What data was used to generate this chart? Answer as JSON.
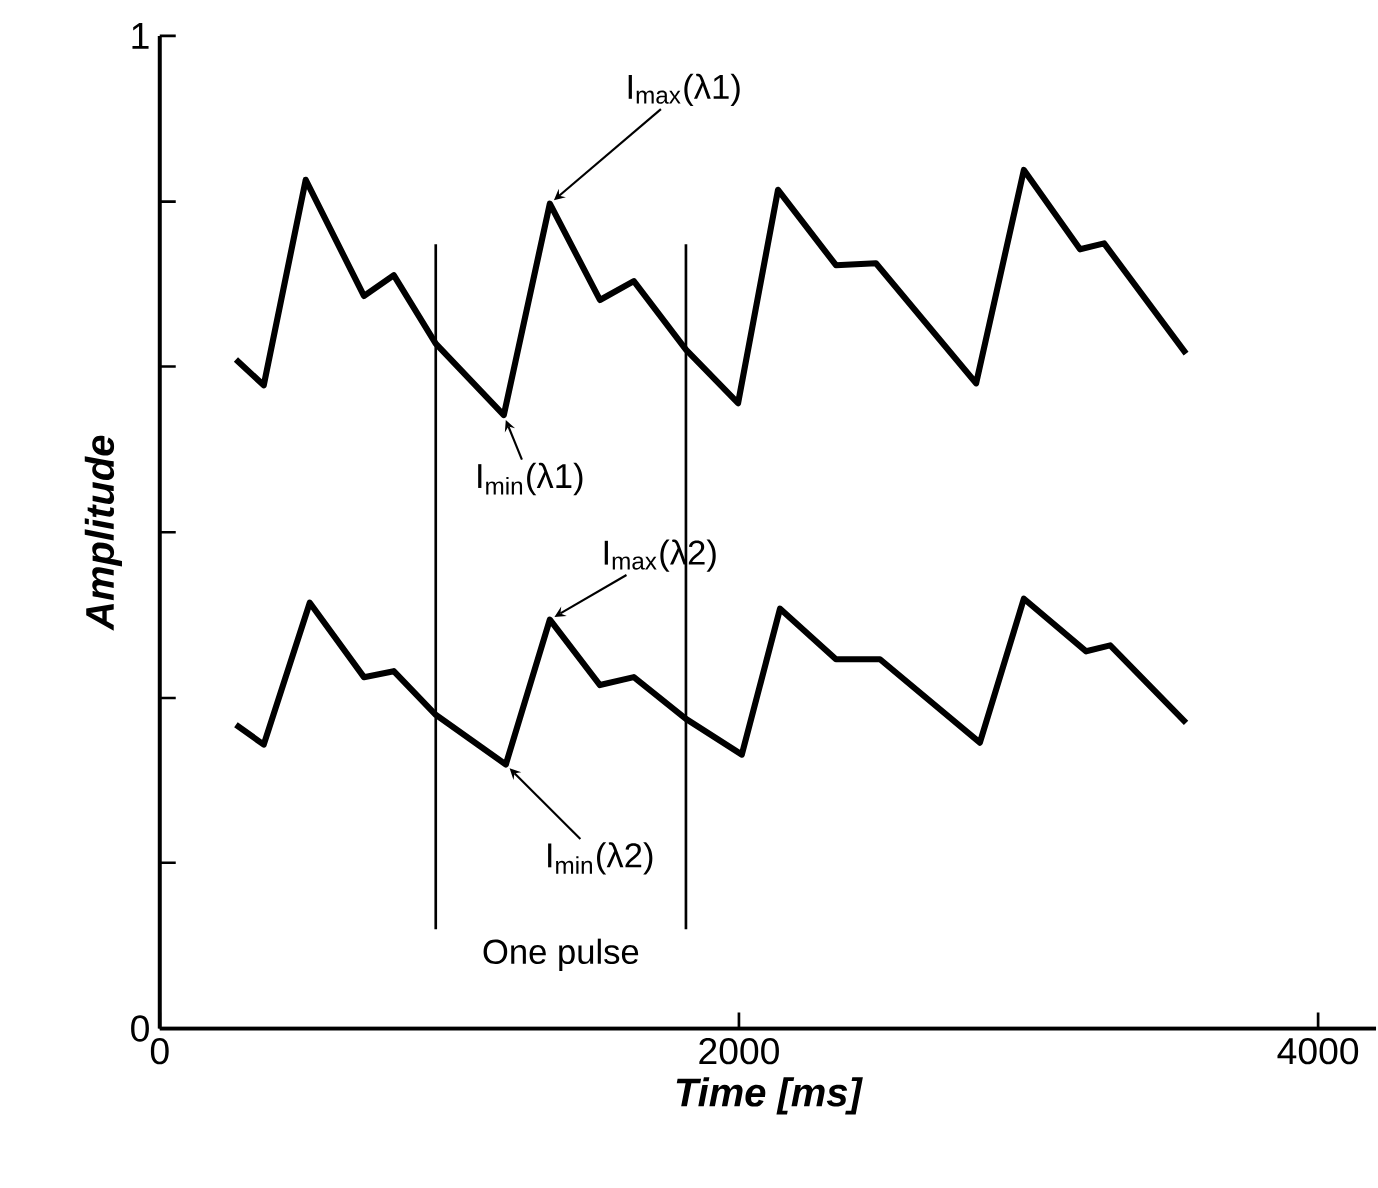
{
  "chart_data": {
    "type": "line",
    "xlabel": "Time [ms]",
    "ylabel": "Amplitude",
    "xlim": [
      0,
      4200
    ],
    "ylim": [
      0,
      1
    ],
    "xticks": [
      0,
      2000,
      4000
    ],
    "yticks": [
      0,
      {
        "value": 0.167,
        "label": null
      },
      {
        "value": 0.333,
        "label": null
      },
      {
        "value": 0.5,
        "label": null
      },
      {
        "value": 0.667,
        "label": null
      },
      {
        "value": 0.833,
        "label": null
      },
      1
    ],
    "series": [
      {
        "color": "#000000",
        "x": [
          263,
          359,
          504,
          705,
          808,
          953,
          1188,
          1347,
          1520,
          1637,
          1817,
          1997,
          2135,
          2335,
          2473,
          2819,
          2984,
          3178,
          3261,
          3544
        ],
        "values": [
          0.674,
          0.648,
          0.855,
          0.738,
          0.759,
          0.69,
          0.618,
          0.831,
          0.734,
          0.753,
          0.684,
          0.63,
          0.845,
          0.769,
          0.771,
          0.65,
          0.865,
          0.785,
          0.791,
          0.68
        ]
      },
      {
        "color": "#000000",
        "x": [
          263,
          359,
          518,
          705,
          808,
          953,
          1195,
          1347,
          1520,
          1637,
          1817,
          2010,
          2142,
          2335,
          2487,
          2832,
          2984,
          3199,
          3282,
          3544
        ],
        "values": [
          0.306,
          0.286,
          0.429,
          0.354,
          0.36,
          0.316,
          0.266,
          0.412,
          0.346,
          0.354,
          0.312,
          0.276,
          0.423,
          0.372,
          0.372,
          0.288,
          0.433,
          0.38,
          0.386,
          0.308
        ]
      }
    ],
    "ref_lines": [
      {
        "axis": "x",
        "value": 953,
        "color": "#000000"
      },
      {
        "axis": "x",
        "value": 1817,
        "color": "#000000"
      }
    ],
    "annotations": [
      {
        "text": "I$_{max}$(λ1)",
        "x": 1347,
        "y": 0.831
      },
      {
        "text": "I$_{min}$(λ1)",
        "x": 1188,
        "y": 0.618
      },
      {
        "text": "I$_{max}$(λ2)",
        "x": 1347,
        "y": 0.412
      },
      {
        "text": "I$_{min}$(λ2)",
        "x": 1195,
        "y": 0.266
      },
      "One pulse"
    ],
    "grid": false
  }
}
